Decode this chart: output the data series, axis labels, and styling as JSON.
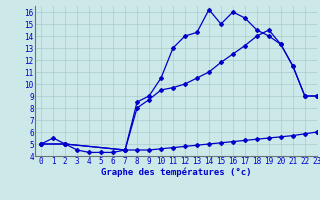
{
  "xlabel": "Graphe des températures (°c)",
  "bg_color": "#cce8e8",
  "line_color": "#0000cc",
  "grid_color": "#aacccc",
  "xlim": [
    -0.5,
    23
  ],
  "ylim": [
    4,
    16.5
  ],
  "xticks": [
    0,
    1,
    2,
    3,
    4,
    5,
    6,
    7,
    8,
    9,
    10,
    11,
    12,
    13,
    14,
    15,
    16,
    17,
    18,
    19,
    20,
    21,
    22,
    23
  ],
  "yticks": [
    4,
    5,
    6,
    7,
    8,
    9,
    10,
    11,
    12,
    13,
    14,
    15,
    16
  ],
  "line1_x": [
    0,
    1,
    2,
    3,
    4,
    5,
    6,
    7,
    8,
    9,
    10,
    11,
    12,
    13,
    14,
    15,
    16,
    17,
    18,
    19,
    20,
    21,
    22,
    23
  ],
  "line1_y": [
    5.0,
    5.5,
    5.0,
    4.5,
    4.3,
    4.3,
    4.3,
    4.5,
    8.5,
    9.0,
    10.5,
    13.0,
    14.0,
    14.3,
    16.2,
    15.0,
    16.0,
    15.5,
    14.5,
    14.0,
    13.3,
    11.5,
    9.0,
    9.0
  ],
  "line2_x": [
    0,
    2,
    7,
    8,
    9,
    10,
    11,
    12,
    13,
    14,
    15,
    16,
    17,
    18,
    19,
    20,
    21,
    22,
    23
  ],
  "line2_y": [
    5.0,
    5.0,
    4.5,
    8.0,
    8.7,
    9.5,
    9.7,
    10.0,
    10.5,
    11.0,
    11.8,
    12.5,
    13.2,
    14.0,
    14.5,
    13.3,
    11.5,
    9.0,
    9.0
  ],
  "line3_x": [
    0,
    2,
    7,
    8,
    9,
    10,
    11,
    12,
    13,
    14,
    15,
    16,
    17,
    18,
    19,
    20,
    21,
    22,
    23
  ],
  "line3_y": [
    5.0,
    5.0,
    4.5,
    4.5,
    4.5,
    4.6,
    4.7,
    4.8,
    4.9,
    5.0,
    5.1,
    5.2,
    5.3,
    5.4,
    5.5,
    5.6,
    5.7,
    5.85,
    6.0
  ],
  "markersize": 2.0,
  "linewidth": 0.9,
  "tick_fontsize": 5.5,
  "xlabel_fontsize": 6.5
}
